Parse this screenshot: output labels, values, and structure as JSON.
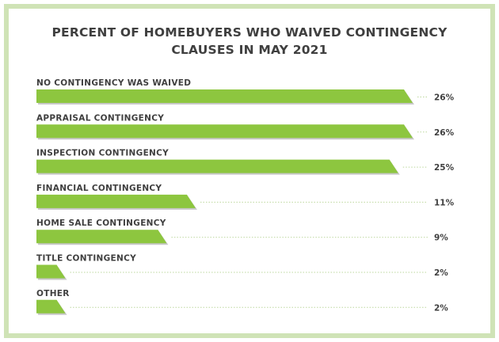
{
  "chart_data": {
    "type": "bar",
    "orientation": "horizontal",
    "title": [
      "PERCENT OF HOMEBUYERS WHO WAIVED CONTINGENCY",
      "CLAUSES IN MAY 2021"
    ],
    "categories": [
      "NO CONTINGENCY WAS WAIVED",
      "APPRAISAL CONTINGENCY",
      "INSPECTION CONTINGENCY",
      "FINANCIAL CONTINGENCY",
      "HOME SALE CONTINGENCY",
      "TITLE CONTINGENCY",
      "OTHER"
    ],
    "values": [
      26,
      26,
      25,
      11,
      9,
      2,
      2
    ],
    "value_labels": [
      "26%",
      "26%",
      "25%",
      "11%",
      "9%",
      "2%",
      "2%"
    ],
    "unit": "%",
    "xlim": [
      0,
      26
    ],
    "grid": false,
    "legend": "none",
    "colors": {
      "bar": "#8dc63f",
      "frame": "#cfe3b6",
      "text": "#3f3f3f",
      "leader": "#bcd79d"
    }
  }
}
